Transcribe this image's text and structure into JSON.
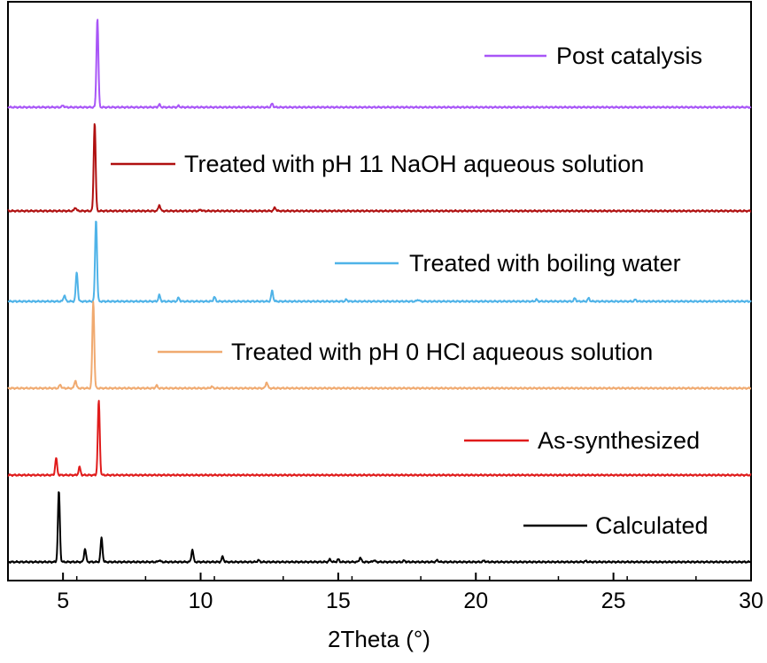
{
  "chart_data": {
    "type": "line",
    "title": "",
    "xlabel": "2Theta (°)",
    "ylabel": "",
    "xlim": [
      3,
      30
    ],
    "xticks": [
      5,
      10,
      15,
      20,
      25,
      30
    ],
    "xtick_labels": [
      "5",
      "10",
      "15",
      "20",
      "25",
      "30"
    ],
    "grid": false,
    "legend_position": "per-trace, right",
    "series": [
      {
        "name": "Post catalysis",
        "color": "#a855f7",
        "peaks": [
          [
            5.0,
            0.02
          ],
          [
            6.25,
            1.0
          ],
          [
            8.5,
            0.03
          ],
          [
            9.2,
            0.015
          ],
          [
            12.6,
            0.04
          ]
        ]
      },
      {
        "name": "Treated with pH 11 NaOH aqueous solution",
        "color": "#b01010",
        "peaks": [
          [
            5.45,
            0.04
          ],
          [
            6.15,
            1.0
          ],
          [
            8.5,
            0.07
          ],
          [
            10.0,
            0.015
          ],
          [
            12.7,
            0.04
          ]
        ]
      },
      {
        "name": "Treated with boiling water",
        "color": "#4fb3e8",
        "peaks": [
          [
            5.05,
            0.07
          ],
          [
            5.5,
            0.33
          ],
          [
            6.2,
            0.93
          ],
          [
            8.5,
            0.07
          ],
          [
            9.2,
            0.04
          ],
          [
            10.5,
            0.05
          ],
          [
            12.6,
            0.12
          ],
          [
            15.3,
            0.02
          ],
          [
            17.9,
            0.02
          ],
          [
            22.2,
            0.02
          ],
          [
            23.6,
            0.035
          ],
          [
            24.1,
            0.035
          ],
          [
            25.8,
            0.02
          ]
        ]
      },
      {
        "name": "Treated with pH 0 HCl aqueous solution",
        "color": "#f0aa70",
        "peaks": [
          [
            4.9,
            0.04
          ],
          [
            5.45,
            0.09
          ],
          [
            6.1,
            0.98
          ],
          [
            8.4,
            0.03
          ],
          [
            10.4,
            0.02
          ],
          [
            12.4,
            0.07
          ]
        ]
      },
      {
        "name": "As-synthesized",
        "color": "#e01b1b",
        "peaks": [
          [
            4.75,
            0.19
          ],
          [
            5.6,
            0.09
          ],
          [
            6.3,
            0.84
          ]
        ]
      },
      {
        "name": "Calculated",
        "color": "#000000",
        "peaks": [
          [
            4.85,
            0.8
          ],
          [
            5.8,
            0.15
          ],
          [
            6.4,
            0.27
          ],
          [
            8.5,
            0.02
          ],
          [
            9.7,
            0.14
          ],
          [
            10.8,
            0.06
          ],
          [
            12.1,
            0.02
          ],
          [
            14.7,
            0.03
          ],
          [
            15.0,
            0.03
          ],
          [
            15.8,
            0.05
          ],
          [
            16.3,
            0.02
          ],
          [
            17.4,
            0.015
          ],
          [
            18.6,
            0.02
          ],
          [
            20.3,
            0.015
          ],
          [
            24.0,
            0.01
          ]
        ]
      }
    ]
  }
}
